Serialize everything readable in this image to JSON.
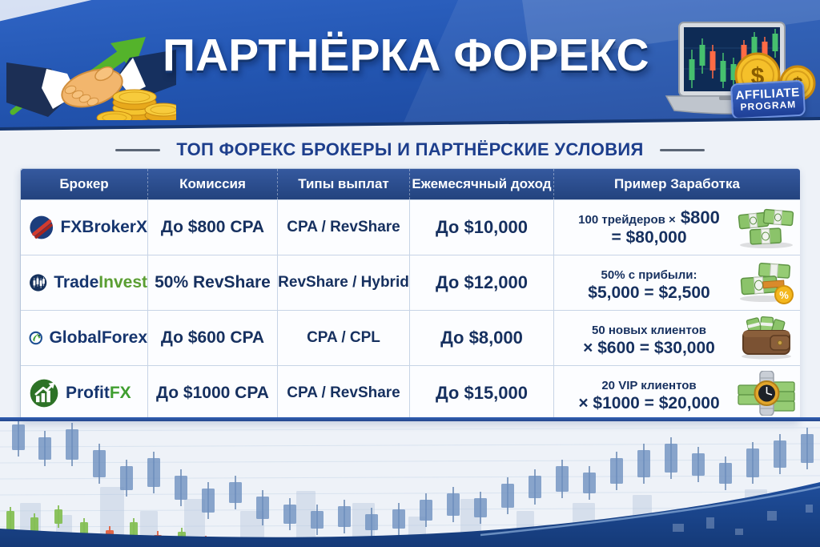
{
  "header": {
    "title": "ПАРТНЁРКА ФОРЕКС",
    "badge": {
      "line1": "AFFILIATE",
      "line2": "PROGRAM"
    },
    "icons": {
      "left": [
        "handshake-icon",
        "growth-arrow-icon",
        "gold-coin-stack-icon"
      ],
      "right": [
        "laptop-candlestick-chart-icon",
        "dollar-coin-icon",
        "dollar-coin-icon"
      ]
    }
  },
  "subtitle": "ТОП ФОРЕКС БРОКЕРЫ И ПАРТНЁРСКИЕ УСЛОВИЯ",
  "table": {
    "columns": [
      "Брокер",
      "Комиссия",
      "Типы выплат",
      "Ежемесячный доход",
      "Пример Заработка"
    ],
    "rows": [
      {
        "broker_main": "FXBroker",
        "broker_accent": "X",
        "accent_color": "#16356e",
        "logo_icon": "fxbrokerx-logo",
        "commission": "До $800 CPA",
        "payouts": "CPA / RevShare",
        "income": "До $10,000",
        "example_line1": "100 трейдеров ×",
        "example_line1_big": " $800",
        "example_line2": "= $80,000",
        "example_icon": "cash-stacks-icon"
      },
      {
        "broker_main": "Trade",
        "broker_accent": "Invest",
        "accent_color": "#5a9e32",
        "logo_icon": "tradeinvest-logo",
        "commission": "50% RevShare",
        "payouts": "RevShare / Hybrid",
        "income": "До $12,000",
        "example_line1": "50% с прибыли:",
        "example_line1_big": "",
        "example_line2": "$5,000 = $2,500",
        "example_icon": "cash-percent-icon"
      },
      {
        "broker_main": "Global",
        "broker_accent": "Forex",
        "accent_color": "#16356e",
        "logo_icon": "globalforex-logo",
        "commission": "До $600 CPA",
        "payouts": "CPA / CPL",
        "income": "До $8,000",
        "example_line1": "50 новых клиентов",
        "example_line1_big": "",
        "example_line2": "× $600 = $30,000",
        "example_icon": "wallet-cash-icon"
      },
      {
        "broker_main": "Profit",
        "broker_accent": "FX",
        "accent_color": "#3f9e2f",
        "logo_icon": "profitfx-logo",
        "commission": "До $1000 CPA",
        "payouts": "CPA / RevShare",
        "income": "До $15,000",
        "example_line1": "20 VIP клиентов",
        "example_line1_big": "",
        "example_line2": "× $1000 = $20,000",
        "example_icon": "watch-cash-icon"
      }
    ]
  },
  "colors": {
    "banner_blue": "#2357b3",
    "table_header_blue": "#2c4f96",
    "text_navy": "#16305f",
    "accent_green": "#5a9e32",
    "coin_gold": "#f2b61e",
    "candle_green": "#85bf55",
    "candle_red": "#e2603f"
  }
}
